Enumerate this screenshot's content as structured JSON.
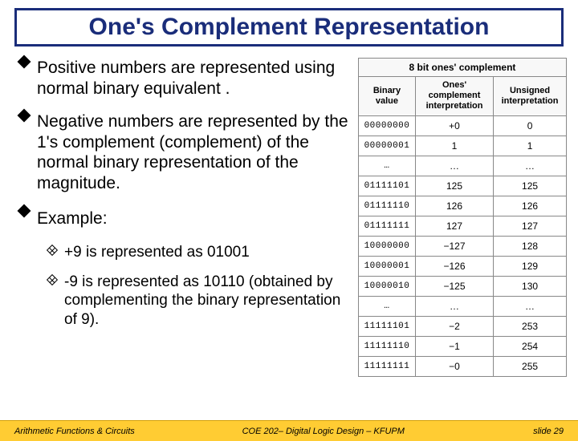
{
  "title": "One's Complement Representation",
  "bullets": [
    {
      "text": "Positive numbers are represented using normal binary equivalent ."
    },
    {
      "text": "Negative numbers are represented by the 1's complement (complement) of the normal binary representation of the magnitude."
    },
    {
      "text": "Example:"
    }
  ],
  "sub_bullets": [
    {
      "text": "+9 is represented as 01001"
    },
    {
      "text": "-9 is represented as 10110 (obtained by complementing the binary representation of 9)."
    }
  ],
  "table": {
    "caption": "8 bit ones' complement",
    "headers": [
      "Binary value",
      "Ones' complement interpretation",
      "Unsigned interpretation"
    ],
    "rows": [
      [
        "00000000",
        "+0",
        "0"
      ],
      [
        "00000001",
        "1",
        "1"
      ],
      [
        "…",
        "…",
        "…"
      ],
      [
        "01111101",
        "125",
        "125"
      ],
      [
        "01111110",
        "126",
        "126"
      ],
      [
        "01111111",
        "127",
        "127"
      ],
      [
        "10000000",
        "−127",
        "128"
      ],
      [
        "10000001",
        "−126",
        "129"
      ],
      [
        "10000010",
        "−125",
        "130"
      ],
      [
        "…",
        "…",
        "…"
      ],
      [
        "11111101",
        "−2",
        "253"
      ],
      [
        "11111110",
        "−1",
        "254"
      ],
      [
        "11111111",
        "−0",
        "255"
      ]
    ],
    "border_color": "#888888",
    "header_bg": "#f8f8f8"
  },
  "footer": {
    "left": "Arithmetic Functions & Circuits",
    "center": "COE 202– Digital Logic Design – KFUPM",
    "right": "slide 29",
    "bg_color": "#ffcc33"
  },
  "colors": {
    "title_color": "#1a2d7a",
    "title_border": "#1a2d7a",
    "body_text": "#000000",
    "background": "#ffffff"
  }
}
